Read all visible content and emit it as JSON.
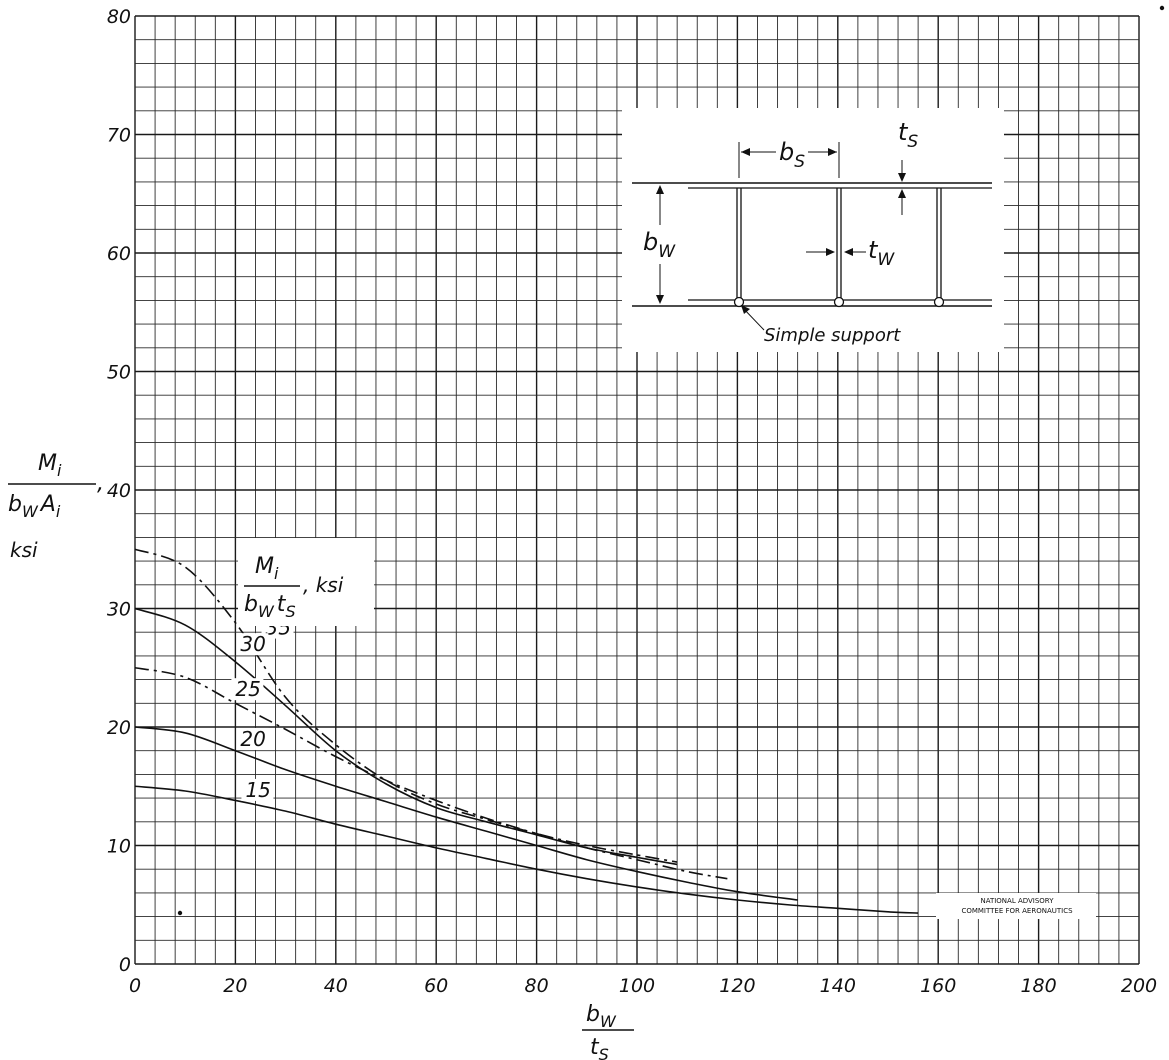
{
  "chart_data": {
    "type": "line",
    "title": "",
    "xlabel": {
      "num": "b",
      "num_sub": "W",
      "den": "t",
      "den_sub": "S"
    },
    "ylabel": {
      "num": "M",
      "num_sub": "i",
      "den1": "b",
      "den1_sub": "W",
      "den2": "A",
      "den2_sub": "i",
      "suffix": ",",
      "unit": "ksi"
    },
    "xlim": [
      0,
      200
    ],
    "ylim": [
      0,
      80
    ],
    "x_ticks": [
      "0",
      "20",
      "40",
      "60",
      "80",
      "100",
      "120",
      "140",
      "160",
      "180",
      "200"
    ],
    "y_ticks": [
      "0",
      "10",
      "20",
      "30",
      "40",
      "50",
      "60",
      "70",
      "80"
    ],
    "grid": true,
    "legend": {
      "title_num": "M",
      "title_num_sub": "i",
      "title_den1": "b",
      "title_den1_sub": "W",
      "title_den2": "t",
      "title_den2_sub": "S",
      "title_unit": ", ksi"
    },
    "series": [
      {
        "name": "35",
        "dashed": true,
        "x": [
          0,
          10,
          20,
          30,
          40,
          50,
          60,
          70,
          80,
          90,
          100,
          108
        ],
        "y": [
          35,
          33.5,
          28.8,
          22.5,
          18.5,
          15.5,
          13.5,
          12.2,
          11.0,
          10.0,
          9.2,
          8.6
        ]
      },
      {
        "name": "30",
        "dashed": false,
        "x": [
          0,
          10,
          20,
          30,
          40,
          50,
          60,
          70,
          80,
          90,
          100,
          108
        ],
        "y": [
          30,
          28.6,
          25.5,
          21.8,
          18.0,
          15.2,
          13.2,
          12.0,
          10.9,
          9.8,
          9.0,
          8.4
        ]
      },
      {
        "name": "25",
        "dashed": true,
        "x": [
          0,
          10,
          20,
          30,
          40,
          50,
          60,
          70,
          80,
          90,
          100,
          110,
          118
        ],
        "y": [
          25,
          24.2,
          22.0,
          19.8,
          17.5,
          15.5,
          13.8,
          12.3,
          11.0,
          9.8,
          8.8,
          7.8,
          7.2
        ]
      },
      {
        "name": "20",
        "dashed": false,
        "x": [
          0,
          10,
          20,
          30,
          40,
          50,
          60,
          70,
          80,
          90,
          100,
          110,
          120,
          132
        ],
        "y": [
          20,
          19.5,
          18.0,
          16.4,
          15.0,
          13.7,
          12.4,
          11.2,
          10.0,
          8.8,
          7.8,
          6.9,
          6.1,
          5.4
        ]
      },
      {
        "name": "15",
        "dashed": false,
        "x": [
          0,
          10,
          20,
          30,
          40,
          50,
          60,
          70,
          80,
          90,
          100,
          110,
          120,
          130,
          140,
          150,
          156
        ],
        "y": [
          15,
          14.6,
          13.8,
          12.9,
          11.8,
          10.8,
          9.8,
          8.9,
          8.0,
          7.2,
          6.5,
          5.9,
          5.4,
          5.0,
          4.7,
          4.4,
          4.3
        ]
      }
    ],
    "inset": {
      "labels": {
        "bs": "b",
        "bs_sub": "S",
        "ts": "t",
        "ts_sub": "S",
        "bw": "b",
        "bw_sub": "W",
        "tw": "t",
        "tw_sub": "W"
      },
      "support_label": "Simple support"
    },
    "stamp": [
      "NATIONAL ADVISORY",
      "COMMITTEE FOR AERONAUTICS"
    ]
  }
}
